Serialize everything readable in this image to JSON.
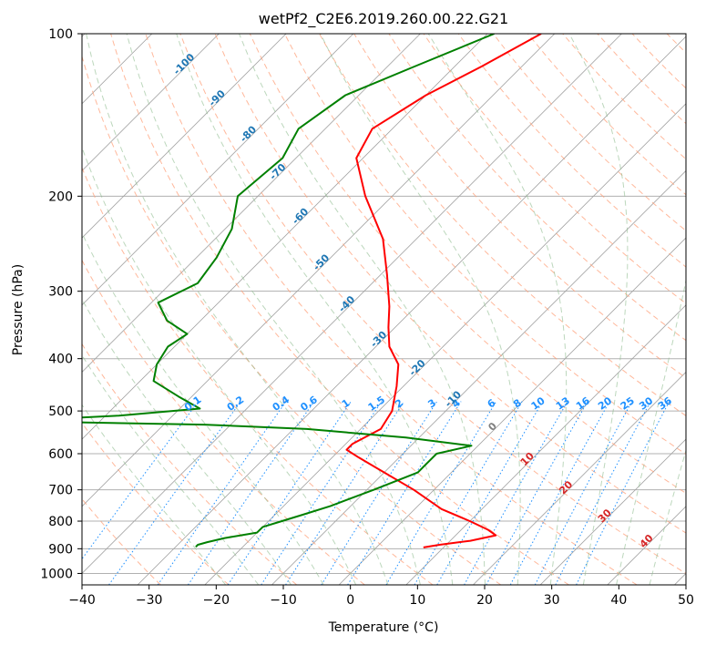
{
  "chart_data": {
    "type": "line",
    "title": "wetPf2_C2E6.2019.260.00.22.G21",
    "xlabel": "Temperature (°C)",
    "ylabel": "Pressure (hPa)",
    "xlim": [
      -40,
      50
    ],
    "ylim": [
      1050,
      100
    ],
    "y_scale": "log",
    "skew": 45,
    "grid": true,
    "x_ticks": [
      -40,
      -30,
      -20,
      -10,
      0,
      10,
      20,
      30,
      40,
      50
    ],
    "x_tick_labels": [
      "−40",
      "−30",
      "−20",
      "−10",
      "0",
      "10",
      "20",
      "30",
      "40",
      "50"
    ],
    "y_ticks": [
      100,
      200,
      300,
      400,
      500,
      600,
      700,
      800,
      900,
      1000
    ],
    "y_tick_labels": [
      "100",
      "200",
      "300",
      "400",
      "500",
      "600",
      "700",
      "800",
      "900",
      "1000"
    ],
    "colors": {
      "temperature": "#ff0000",
      "dewpoint": "#008000",
      "isotherm": "#a0a0a0",
      "dry_adiabat": "#ffa07a",
      "moist_adiabat": "#8fbc8f",
      "mixing_ratio": "#1e90ff",
      "isotherm_label": "#1f77b4",
      "zero_label": "#808080",
      "warm_label": "#d62728",
      "mixing_label": "#1e90ff"
    },
    "series": [
      {
        "role": "temperature",
        "color": "#ff0000",
        "p": [
          100,
          115,
          130,
          150,
          170,
          200,
          240,
          280,
          320,
          350,
          380,
          410,
          450,
          500,
          540,
          575,
          590,
          610,
          650,
          700,
          760,
          800,
          830,
          850,
          870,
          885,
          895
        ],
        "t": [
          -52,
          -56,
          -60,
          -63,
          -61,
          -54,
          -45,
          -39,
          -34,
          -31,
          -28,
          -24,
          -21,
          -18,
          -17,
          -19,
          -19,
          -16,
          -10,
          -3,
          4,
          10,
          14,
          16,
          13,
          9,
          7
        ]
      },
      {
        "role": "dewpoint",
        "color": "#008000",
        "p": [
          100,
          115,
          130,
          150,
          170,
          200,
          230,
          260,
          290,
          315,
          340,
          360,
          380,
          410,
          440,
          470,
          495,
          510,
          518,
          522,
          525,
          530,
          540,
          560,
          580,
          600,
          620,
          650,
          700,
          750,
          780,
          800,
          820,
          840,
          850,
          860,
          875,
          885,
          893
        ],
        "t": [
          -59,
          -66,
          -72,
          -74,
          -72,
          -73,
          -69,
          -67,
          -66,
          -69,
          -65,
          -60,
          -61,
          -60,
          -58,
          -52,
          -47,
          -58,
          -68,
          -72,
          -62,
          -44,
          -28,
          -12,
          -1,
          -5,
          -5,
          -5,
          -9,
          -13,
          -16,
          -18,
          -20,
          -20,
          -22,
          -24,
          -26,
          -27,
          -27
        ]
      }
    ],
    "isotherm_labels": [
      "-100",
      "-90",
      "-80",
      "-70",
      "-60",
      "-50",
      "-40",
      "-30",
      "-20",
      "-10",
      "0",
      "10",
      "20",
      "30",
      "40"
    ],
    "mixing_ratio_labels": [
      "0.1",
      "0.2",
      "0.4",
      "0.6",
      "1",
      "1.5",
      "2",
      "3",
      "4",
      "6",
      "8",
      "10",
      "13",
      "16",
      "20",
      "25",
      "30",
      "36"
    ]
  }
}
